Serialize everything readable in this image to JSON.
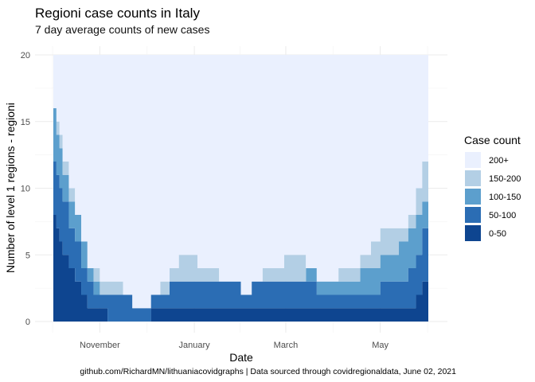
{
  "chart_data": {
    "type": "area",
    "stacked": true,
    "title": "Regioni case counts in Italy",
    "subtitle": "7 day average counts of new cases",
    "xlabel": "Date",
    "ylabel": "Number of level 1 regions - regioni",
    "caption": "github.com/RichardMN/lithuaniacovidgraphs | Data sourced through covidregionaldata, June 02, 2021",
    "x_range": [
      "2020-10-02",
      "2021-06-01"
    ],
    "x_ticks": [
      {
        "date": "2020-11-01",
        "label": "November"
      },
      {
        "date": "2021-01-01",
        "label": "January"
      },
      {
        "date": "2021-03-01",
        "label": "March"
      },
      {
        "date": "2021-05-01",
        "label": "May"
      }
    ],
    "ylim": [
      0,
      20
    ],
    "y_ticks": [
      0,
      5,
      10,
      15,
      20
    ],
    "grid": true,
    "legend": {
      "title": "Case count",
      "placement": "right",
      "entries": [
        {
          "label": "200+",
          "color": "#EAF0FE"
        },
        {
          "label": "150-200",
          "color": "#B3CFE5"
        },
        {
          "label": "100-150",
          "color": "#5C9FCD"
        },
        {
          "label": "50-100",
          "color": "#2B6DB4"
        },
        {
          "label": "0-50",
          "color": "#0E4590"
        }
      ]
    },
    "x": [
      "2020-10-02",
      "2020-10-04",
      "2020-10-06",
      "2020-10-08",
      "2020-10-12",
      "2020-10-16",
      "2020-10-20",
      "2020-10-24",
      "2020-10-28",
      "2020-11-01",
      "2020-11-06",
      "2020-11-11",
      "2020-11-16",
      "2020-11-22",
      "2020-11-28",
      "2020-12-04",
      "2020-12-10",
      "2020-12-16",
      "2020-12-22",
      "2020-12-28",
      "2021-01-03",
      "2021-01-10",
      "2021-01-17",
      "2021-01-24",
      "2021-01-31",
      "2021-02-07",
      "2021-02-14",
      "2021-02-21",
      "2021-02-28",
      "2021-03-07",
      "2021-03-14",
      "2021-03-21",
      "2021-03-28",
      "2021-04-04",
      "2021-04-11",
      "2021-04-18",
      "2021-04-25",
      "2021-05-01",
      "2021-05-07",
      "2021-05-13",
      "2021-05-19",
      "2021-05-24",
      "2021-05-28",
      "2021-06-01"
    ],
    "series": [
      {
        "name": "0-50",
        "values": [
          8,
          7,
          6,
          5,
          4,
          3,
          2,
          1,
          1,
          1,
          0,
          0,
          0,
          0,
          0,
          1,
          1,
          1,
          1,
          1,
          1,
          1,
          1,
          1,
          1,
          1,
          1,
          1,
          1,
          1,
          1,
          1,
          1,
          1,
          1,
          1,
          1,
          1,
          1,
          1,
          1,
          2,
          3,
          7
        ]
      },
      {
        "name": "50-100",
        "values": [
          4,
          4,
          4,
          4,
          3,
          3,
          2,
          2,
          1,
          1,
          2,
          2,
          2,
          1,
          1,
          1,
          1,
          2,
          2,
          2,
          2,
          2,
          2,
          2,
          1,
          2,
          2,
          2,
          2,
          2,
          2,
          1,
          1,
          1,
          1,
          1,
          1,
          2,
          2,
          2,
          3,
          3,
          4,
          1
        ]
      },
      {
        "name": "100-150",
        "values": [
          4,
          3,
          3,
          2,
          2,
          2,
          2,
          1,
          1,
          0,
          0,
          0,
          0,
          0,
          0,
          0,
          0,
          0,
          0,
          0,
          0,
          0,
          0,
          0,
          0,
          0,
          0,
          0,
          0,
          0,
          1,
          1,
          1,
          1,
          1,
          2,
          2,
          2,
          2,
          3,
          3,
          3,
          2,
          2
        ]
      },
      {
        "name": "150-200",
        "values": [
          0,
          1,
          1,
          1,
          1,
          0,
          0,
          0,
          1,
          1,
          1,
          1,
          0,
          0,
          0,
          0,
          1,
          1,
          2,
          2,
          1,
          1,
          0,
          0,
          0,
          0,
          1,
          1,
          2,
          2,
          0,
          0,
          0,
          1,
          1,
          1,
          2,
          2,
          2,
          1,
          1,
          2,
          3,
          3
        ]
      },
      {
        "name": "200+",
        "values": [
          4,
          5,
          6,
          8,
          10,
          12,
          14,
          16,
          16,
          17,
          17,
          17,
          18,
          19,
          19,
          18,
          17,
          16,
          15,
          15,
          16,
          16,
          17,
          17,
          18,
          17,
          16,
          16,
          15,
          15,
          16,
          17,
          17,
          16,
          16,
          15,
          14,
          13,
          13,
          13,
          12,
          10,
          8,
          7
        ]
      }
    ]
  }
}
